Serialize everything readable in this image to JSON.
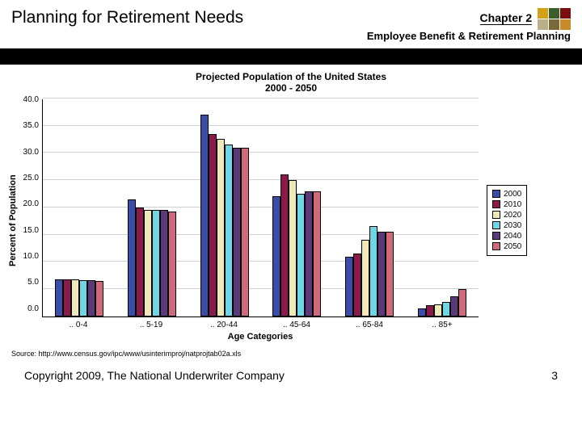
{
  "header": {
    "title": "Planning for Retirement Needs",
    "chapter": "Chapter 2",
    "subtitle": "Employee Benefit & Retirement Planning",
    "logo_colors": [
      "#d4a018",
      "#3a5f2a",
      "#7a0e0e",
      "#b9b08a",
      "#7a6a3a",
      "#c98a2a"
    ]
  },
  "chart": {
    "type": "bar",
    "title_line1": "Projected Population of the United States",
    "title_line2": "2000 - 2050",
    "ylabel": "Percent of Population",
    "xlabel": "Age Categories",
    "ylim": [
      0,
      40.0
    ],
    "ytick_step": 5.0,
    "yticks": [
      "0.0",
      "5.0",
      "10.0",
      "15.0",
      "20.0",
      "25.0",
      "30.0",
      "35.0",
      "40.0"
    ],
    "categories": [
      ".. 0-4",
      ".. 5-19",
      ".. 20-44",
      ".. 45-64",
      ".. 65-84",
      ".. 85+"
    ],
    "series": [
      {
        "name": "2000",
        "color": "#3a4da8"
      },
      {
        "name": "2010",
        "color": "#8b1a4a"
      },
      {
        "name": "2020",
        "color": "#efe8b8"
      },
      {
        "name": "2030",
        "color": "#6fd6e6"
      },
      {
        "name": "2040",
        "color": "#5a3a7a"
      },
      {
        "name": "2050",
        "color": "#d06a7a"
      }
    ],
    "data": [
      [
        6.8,
        6.8,
        6.8,
        6.7,
        6.6,
        6.5
      ],
      [
        21.5,
        20.0,
        19.5,
        19.5,
        19.5,
        19.3
      ],
      [
        37.0,
        33.5,
        32.5,
        31.5,
        31.0,
        31.0
      ],
      [
        22.0,
        26.0,
        25.0,
        22.5,
        23.0,
        23.0
      ],
      [
        11.0,
        11.5,
        14.0,
        16.5,
        15.5,
        15.5
      ],
      [
        1.5,
        2.0,
        2.2,
        2.7,
        3.7,
        5.0
      ]
    ],
    "background_color": "#ffffff",
    "grid_color": "#d0d0d0",
    "bar_border": "#000000"
  },
  "source": "Source: http://www.census.gov/ipc/www/usinterimproj/natprojtab02a.xls",
  "footer": {
    "copyright": "Copyright 2009, The National Underwriter Company",
    "page": "3"
  }
}
